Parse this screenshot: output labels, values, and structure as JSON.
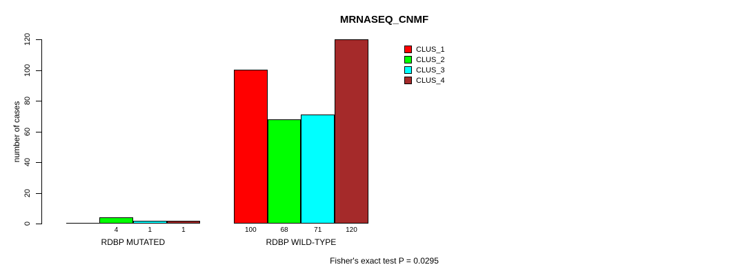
{
  "chart_data": {
    "type": "bar",
    "title": "MRNASEQ_CNMF",
    "ylabel": "number of cases",
    "xlabel": "",
    "ylim": [
      0,
      120
    ],
    "yticks": [
      0,
      20,
      40,
      60,
      80,
      100,
      120
    ],
    "categories": [
      "RDBP MUTATED",
      "RDBP WILD-TYPE"
    ],
    "series": [
      {
        "name": "CLUS_1",
        "color": "#FF0000",
        "values": [
          0,
          100
        ]
      },
      {
        "name": "CLUS_2",
        "color": "#00FF00",
        "values": [
          4,
          68
        ]
      },
      {
        "name": "CLUS_3",
        "color": "#00FFFF",
        "values": [
          1,
          71
        ]
      },
      {
        "name": "CLUS_4",
        "color": "#A52A2A",
        "values": [
          1,
          120
        ]
      }
    ],
    "bar_labels": [
      [
        "",
        "100"
      ],
      [
        "4",
        "68"
      ],
      [
        "1",
        "71"
      ],
      [
        "1",
        "120"
      ]
    ],
    "legend_position": "top-right",
    "grid": false,
    "footer": "Fisher's exact test P = 0.0295"
  }
}
